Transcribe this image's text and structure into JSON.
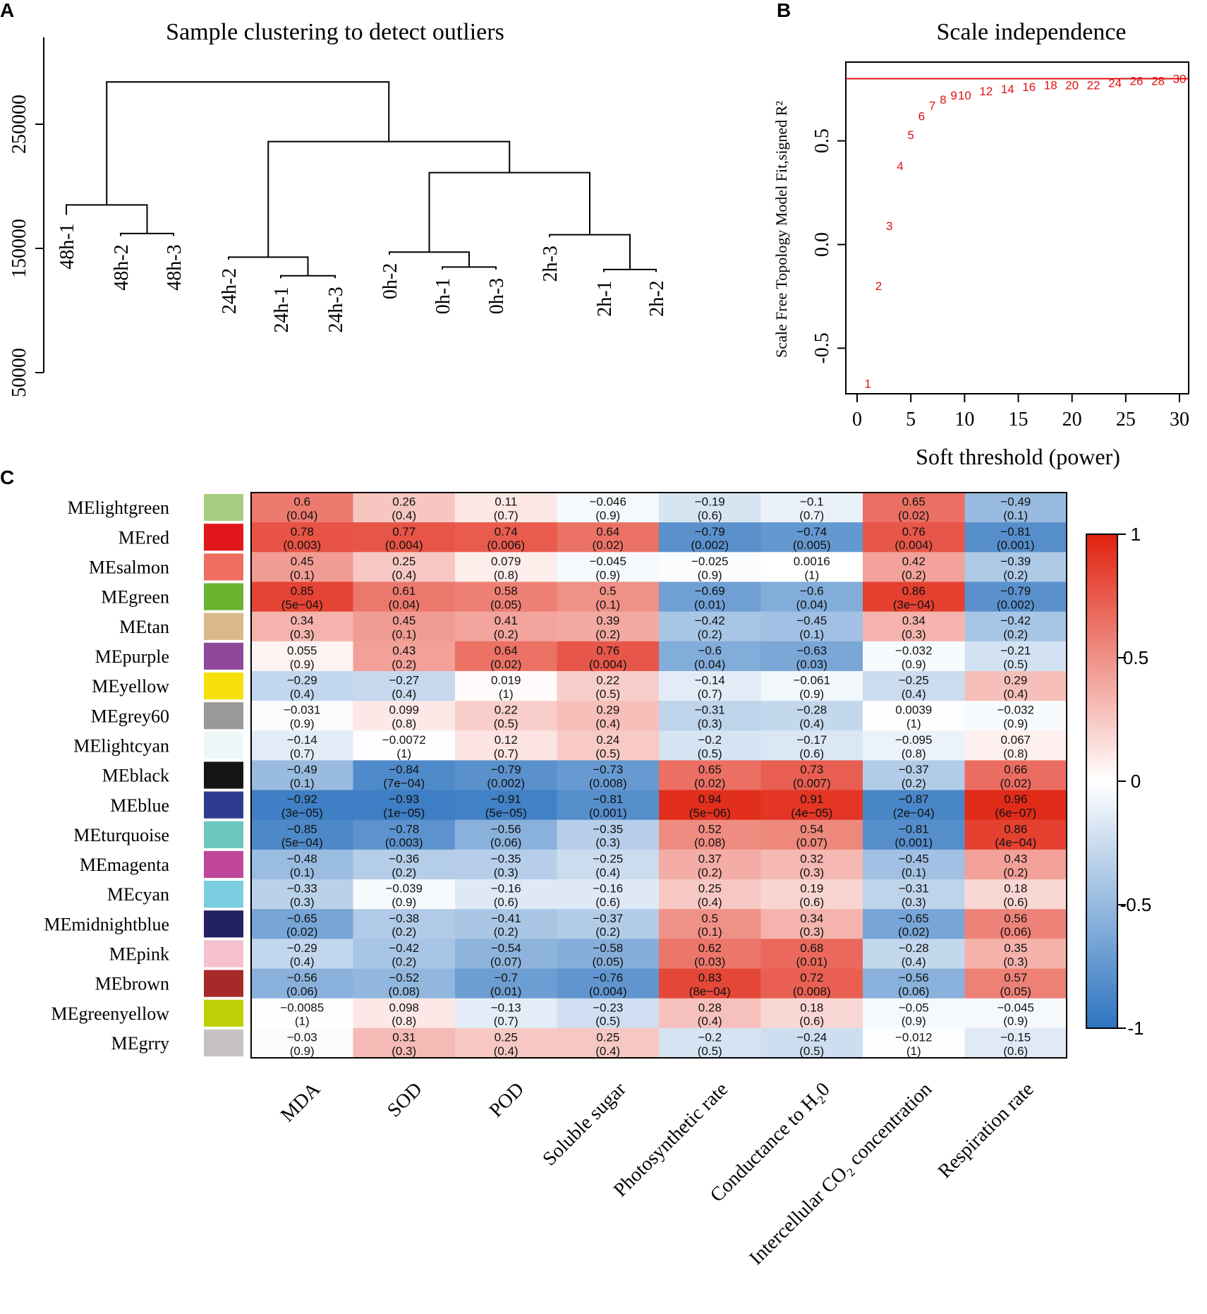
{
  "panels": {
    "a": {
      "label": "A",
      "title": "Sample clustering  to detect outliers"
    },
    "b": {
      "label": "B",
      "title": "Scale independence"
    },
    "c": {
      "label": "C"
    }
  },
  "chart_data": [
    {
      "id": "A",
      "type": "dendrogram",
      "title": "Sample clustering  to detect outliers",
      "ylabel": "",
      "yticks": [
        "50000",
        "150000",
        "250000"
      ],
      "ytick_values": [
        50000,
        150000,
        250000
      ],
      "ylim": [
        50000,
        320000
      ],
      "leaves": [
        "48h-1",
        "48h-2",
        "48h-3",
        "24h-2",
        "24h-1",
        "24h-3",
        "0h-2",
        "0h-1",
        "0h-3",
        "2h-3",
        "2h-1",
        "2h-2"
      ],
      "leaf_tops": [
        177000,
        160000,
        160000,
        141000,
        126000,
        126000,
        145000,
        133000,
        133000,
        159000,
        131000,
        131000
      ],
      "merges": [
        {
          "left": "L1",
          "right": "L2",
          "height": 162000,
          "id": "m1"
        },
        {
          "left": "L0",
          "right": "m1",
          "height": 185000,
          "id": "m2"
        },
        {
          "left": "L4",
          "right": "L5",
          "height": 128000,
          "id": "m3"
        },
        {
          "left": "L3",
          "right": "m3",
          "height": 143000,
          "id": "m4"
        },
        {
          "left": "L7",
          "right": "L8",
          "height": 135000,
          "id": "m5"
        },
        {
          "left": "L6",
          "right": "m5",
          "height": 147000,
          "id": "m6"
        },
        {
          "left": "L10",
          "right": "L11",
          "height": 133000,
          "id": "m7"
        },
        {
          "left": "L9",
          "right": "m7",
          "height": 161000,
          "id": "m8"
        },
        {
          "left": "m6",
          "right": "m8",
          "height": 211000,
          "id": "m9"
        },
        {
          "left": "m4",
          "right": "m9",
          "height": 236000,
          "id": "m10"
        },
        {
          "left": "m2",
          "right": "m10",
          "height": 284000,
          "id": "m11"
        }
      ]
    },
    {
      "id": "B",
      "type": "scatter",
      "title": "Scale independence",
      "xlabel": "Soft threshold (power)",
      "ylabel": "Scale Free Topology Model Fit,signed R²",
      "xlim": [
        0,
        30
      ],
      "ylim": [
        -0.72,
        0.88
      ],
      "xticks": [
        "0",
        "5",
        "10",
        "15",
        "20",
        "25",
        "30"
      ],
      "xtick_values": [
        0,
        5,
        10,
        15,
        20,
        25,
        30
      ],
      "yticks": [
        "-0.5",
        "0.0",
        "0.5"
      ],
      "ytick_values": [
        -0.5,
        0.0,
        0.5
      ],
      "hline": 0.8,
      "points": [
        {
          "x": 1,
          "y": -0.67,
          "label": "1"
        },
        {
          "x": 2,
          "y": -0.2,
          "label": "2"
        },
        {
          "x": 3,
          "y": 0.09,
          "label": "3"
        },
        {
          "x": 4,
          "y": 0.38,
          "label": "4"
        },
        {
          "x": 5,
          "y": 0.53,
          "label": "5"
        },
        {
          "x": 6,
          "y": 0.62,
          "label": "6"
        },
        {
          "x": 7,
          "y": 0.67,
          "label": "7"
        },
        {
          "x": 8,
          "y": 0.7,
          "label": "8"
        },
        {
          "x": 9,
          "y": 0.72,
          "label": "9"
        },
        {
          "x": 10,
          "y": 0.72,
          "label": "10"
        },
        {
          "x": 12,
          "y": 0.74,
          "label": "12"
        },
        {
          "x": 14,
          "y": 0.75,
          "label": "14"
        },
        {
          "x": 16,
          "y": 0.76,
          "label": "16"
        },
        {
          "x": 18,
          "y": 0.77,
          "label": "18"
        },
        {
          "x": 20,
          "y": 0.77,
          "label": "20"
        },
        {
          "x": 22,
          "y": 0.77,
          "label": "22"
        },
        {
          "x": 24,
          "y": 0.78,
          "label": "24"
        },
        {
          "x": 26,
          "y": 0.79,
          "label": "26"
        },
        {
          "x": 28,
          "y": 0.79,
          "label": "28"
        },
        {
          "x": 30,
          "y": 0.8,
          "label": "30"
        }
      ]
    },
    {
      "id": "C",
      "type": "heatmap",
      "rows": [
        "MElightgreen",
        "MEred",
        "MEsalmon",
        "MEgreen",
        "MEtan",
        "MEpurple",
        "MEyellow",
        "MEgrey60",
        "MElightcyan",
        "MEblack",
        "MEblue",
        "MEturquoise",
        "MEmagenta",
        "MEcyan",
        "MEmidnightblue",
        "MEpink",
        "MEbrown",
        "MEgreenyellow",
        "MEgrry"
      ],
      "row_colors": [
        "#a6ce80",
        "#e3161b",
        "#ef6e62",
        "#6bb22f",
        "#d9b88a",
        "#8e479a",
        "#f6e10d",
        "#9a9898",
        "#eef7f8",
        "#151515",
        "#2e3c8f",
        "#6bc6bd",
        "#c0479a",
        "#7bcde0",
        "#242161",
        "#f4c1cd",
        "#a62a28",
        "#bfcf07",
        "#c7c1c1"
      ],
      "columns": [
        "MDA",
        "SOD",
        "POD",
        "Soluble sugar",
        "Photosynthetic rate",
        "Conductance to H₂0",
        "Intercellular CO₂ concentration",
        "Respiration rate"
      ],
      "correlation": [
        [
          0.6,
          0.26,
          0.11,
          -0.046,
          -0.19,
          -0.1,
          0.65,
          -0.49
        ],
        [
          0.78,
          0.77,
          0.74,
          0.64,
          -0.79,
          -0.74,
          0.76,
          -0.81
        ],
        [
          0.45,
          0.25,
          0.079,
          -0.045,
          -0.025,
          0.0016,
          0.42,
          -0.39
        ],
        [
          0.85,
          0.61,
          0.58,
          0.5,
          -0.69,
          -0.6,
          0.86,
          -0.79
        ],
        [
          0.34,
          0.45,
          0.41,
          0.39,
          -0.42,
          -0.45,
          0.34,
          -0.42
        ],
        [
          0.055,
          0.43,
          0.64,
          0.76,
          -0.6,
          -0.63,
          -0.032,
          -0.21
        ],
        [
          -0.29,
          -0.27,
          0.019,
          0.22,
          -0.14,
          -0.061,
          -0.25,
          0.29
        ],
        [
          -0.031,
          0.099,
          0.22,
          0.29,
          -0.31,
          -0.28,
          0.0039,
          -0.032
        ],
        [
          -0.14,
          -0.0072,
          0.12,
          0.24,
          -0.2,
          -0.17,
          -0.095,
          0.067
        ],
        [
          -0.49,
          -0.84,
          -0.79,
          -0.73,
          0.65,
          0.73,
          -0.37,
          0.66
        ],
        [
          -0.92,
          -0.93,
          -0.91,
          -0.81,
          0.94,
          0.91,
          -0.87,
          0.96
        ],
        [
          -0.85,
          -0.78,
          -0.56,
          -0.35,
          0.52,
          0.54,
          -0.81,
          0.86
        ],
        [
          -0.48,
          -0.36,
          -0.35,
          -0.25,
          0.37,
          0.32,
          -0.45,
          0.43
        ],
        [
          -0.33,
          -0.039,
          -0.16,
          -0.16,
          0.25,
          0.19,
          -0.31,
          0.18
        ],
        [
          -0.65,
          -0.38,
          -0.41,
          -0.37,
          0.5,
          0.34,
          -0.65,
          0.56
        ],
        [
          -0.29,
          -0.42,
          -0.54,
          -0.58,
          0.62,
          0.68,
          -0.28,
          0.35
        ],
        [
          -0.56,
          -0.52,
          -0.7,
          -0.76,
          0.83,
          0.72,
          -0.56,
          0.57
        ],
        [
          -0.0085,
          0.098,
          -0.13,
          -0.23,
          0.28,
          0.18,
          -0.05,
          -0.045
        ],
        [
          -0.03,
          0.31,
          0.25,
          0.25,
          -0.2,
          -0.24,
          -0.012,
          -0.15
        ]
      ],
      "corr_text": [
        [
          "0.6",
          "0.26",
          "0.11",
          "−0.046",
          "−0.19",
          "−0.1",
          "0.65",
          "−0.49"
        ],
        [
          "0.78",
          "0.77",
          "0.74",
          "0.64",
          "−0.79",
          "−0.74",
          "0.76",
          "−0.81"
        ],
        [
          "0.45",
          "0.25",
          "0.079",
          "−0.045",
          "−0.025",
          "0.0016",
          "0.42",
          "−0.39"
        ],
        [
          "0.85",
          "0.61",
          "0.58",
          "0.5",
          "−0.69",
          "−0.6",
          "0.86",
          "−0.79"
        ],
        [
          "0.34",
          "0.45",
          "0.41",
          "0.39",
          "−0.42",
          "−0.45",
          "0.34",
          "−0.42"
        ],
        [
          "0.055",
          "0.43",
          "0.64",
          "0.76",
          "−0.6",
          "−0.63",
          "−0.032",
          "−0.21"
        ],
        [
          "−0.29",
          "−0.27",
          "0.019",
          "0.22",
          "−0.14",
          "−0.061",
          "−0.25",
          "0.29"
        ],
        [
          "−0.031",
          "0.099",
          "0.22",
          "0.29",
          "−0.31",
          "−0.28",
          "0.0039",
          "−0.032"
        ],
        [
          "−0.14",
          "−0.0072",
          "0.12",
          "0.24",
          "−0.2",
          "−0.17",
          "−0.095",
          "0.067"
        ],
        [
          "−0.49",
          "−0.84",
          "−0.79",
          "−0.73",
          "0.65",
          "0.73",
          "−0.37",
          "0.66"
        ],
        [
          "−0.92",
          "−0.93",
          "−0.91",
          "−0.81",
          "0.94",
          "0.91",
          "−0.87",
          "0.96"
        ],
        [
          "−0.85",
          "−0.78",
          "−0.56",
          "−0.35",
          "0.52",
          "0.54",
          "−0.81",
          "0.86"
        ],
        [
          "−0.48",
          "−0.36",
          "−0.35",
          "−0.25",
          "0.37",
          "0.32",
          "−0.45",
          "0.43"
        ],
        [
          "−0.33",
          "−0.039",
          "−0.16",
          "−0.16",
          "0.25",
          "0.19",
          "−0.31",
          "0.18"
        ],
        [
          "−0.65",
          "−0.38",
          "−0.41",
          "−0.37",
          "0.5",
          "0.34",
          "−0.65",
          "0.56"
        ],
        [
          "−0.29",
          "−0.42",
          "−0.54",
          "−0.58",
          "0.62",
          "0.68",
          "−0.28",
          "0.35"
        ],
        [
          "−0.56",
          "−0.52",
          "−0.7",
          "−0.76",
          "0.83",
          "0.72",
          "−0.56",
          "0.57"
        ],
        [
          "−0.0085",
          "0.098",
          "−0.13",
          "−0.23",
          "0.28",
          "0.18",
          "−0.05",
          "−0.045"
        ],
        [
          "−0.03",
          "0.31",
          "0.25",
          "0.25",
          "−0.2",
          "−0.24",
          "−0.012",
          "−0.15"
        ]
      ],
      "pvalues": [
        [
          "(0.04)",
          "(0.4)",
          "(0.7)",
          "(0.9)",
          "(0.6)",
          "(0.7)",
          "(0.02)",
          "(0.1)"
        ],
        [
          "(0.003)",
          "(0.004)",
          "(0.006)",
          "(0.02)",
          "(0.002)",
          "(0.005)",
          "(0.004)",
          "(0.001)"
        ],
        [
          "(0.1)",
          "(0.4)",
          "(0.8)",
          "(0.9)",
          "(0.9)",
          "(1)",
          "(0.2)",
          "(0.2)"
        ],
        [
          "(5e−04)",
          "(0.04)",
          "(0.05)",
          "(0.1)",
          "(0.01)",
          "(0.04)",
          "(3e−04)",
          "(0.002)"
        ],
        [
          "(0.3)",
          "(0.1)",
          "(0.2)",
          "(0.2)",
          "(0.2)",
          "(0.1)",
          "(0.3)",
          "(0.2)"
        ],
        [
          "(0.9)",
          "(0.2)",
          "(0.02)",
          "(0.004)",
          "(0.04)",
          "(0.03)",
          "(0.9)",
          "(0.5)"
        ],
        [
          "(0.4)",
          "(0.4)",
          "(1)",
          "(0.5)",
          "(0.7)",
          "(0.9)",
          "(0.4)",
          "(0.4)"
        ],
        [
          "(0.9)",
          "(0.8)",
          "(0.5)",
          "(0.4)",
          "(0.3)",
          "(0.4)",
          "(1)",
          "(0.9)"
        ],
        [
          "(0.7)",
          "(1)",
          "(0.7)",
          "(0.5)",
          "(0.5)",
          "(0.6)",
          "(0.8)",
          "(0.8)"
        ],
        [
          "(0.1)",
          "(7e−04)",
          "(0.002)",
          "(0.008)",
          "(0.02)",
          "(0.007)",
          "(0.2)",
          "(0.02)"
        ],
        [
          "(3e−05)",
          "(1e−05)",
          "(5e−05)",
          "(0.001)",
          "(5e−06)",
          "(4e−05)",
          "(2e−04)",
          "(6e−07)"
        ],
        [
          "(5e−04)",
          "(0.003)",
          "(0.06)",
          "(0.3)",
          "(0.08)",
          "(0.07)",
          "(0.001)",
          "(4e−04)"
        ],
        [
          "(0.1)",
          "(0.2)",
          "(0.3)",
          "(0.4)",
          "(0.2)",
          "(0.3)",
          "(0.1)",
          "(0.2)"
        ],
        [
          "(0.3)",
          "(0.9)",
          "(0.6)",
          "(0.6)",
          "(0.4)",
          "(0.6)",
          "(0.3)",
          "(0.6)"
        ],
        [
          "(0.02)",
          "(0.2)",
          "(0.2)",
          "(0.2)",
          "(0.1)",
          "(0.3)",
          "(0.02)",
          "(0.06)"
        ],
        [
          "(0.4)",
          "(0.2)",
          "(0.07)",
          "(0.05)",
          "(0.03)",
          "(0.01)",
          "(0.4)",
          "(0.3)"
        ],
        [
          "(0.06)",
          "(0.08)",
          "(0.01)",
          "(0.004)",
          "(8e−04)",
          "(0.008)",
          "(0.06)",
          "(0.05)"
        ],
        [
          "(1)",
          "(0.8)",
          "(0.7)",
          "(0.5)",
          "(0.4)",
          "(0.6)",
          "(0.9)",
          "(0.9)"
        ],
        [
          "(0.9)",
          "(0.3)",
          "(0.4)",
          "(0.4)",
          "(0.5)",
          "(0.5)",
          "(1)",
          "(0.6)"
        ]
      ],
      "legend": {
        "ticks": [
          "1",
          "0.5",
          "0",
          "-0.5",
          "-1"
        ],
        "tick_values": [
          1,
          0.5,
          0,
          -0.5,
          -1
        ],
        "range": [
          -1,
          1
        ]
      },
      "colors": {
        "low": "#2e74c0",
        "mid": "#ffffff",
        "high": "#e0220f"
      }
    }
  ]
}
